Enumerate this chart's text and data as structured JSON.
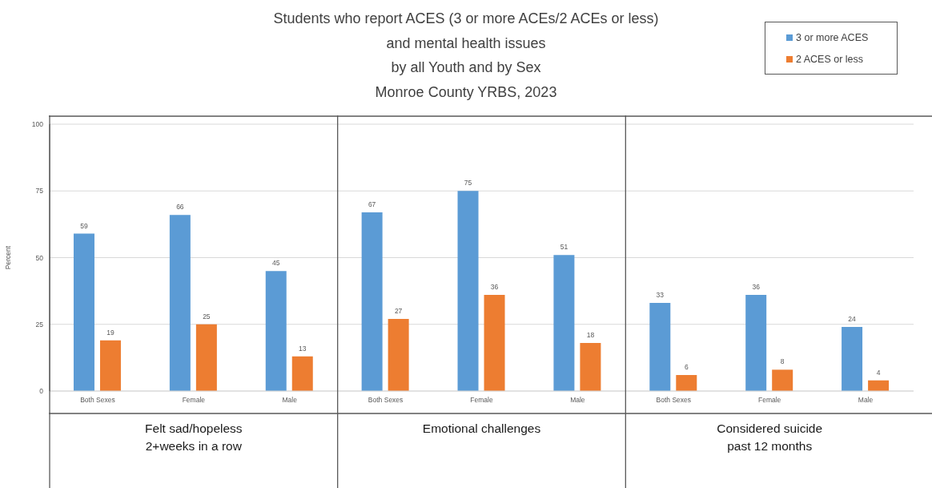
{
  "chart_data": {
    "type": "bar",
    "title": "Students who report ACES (3 or more ACEs/2 ACEs or less)\nand mental health issues\nby all Youth and by Sex\nMonroe County YRBS, 2023",
    "ylabel": "Percent",
    "categories": [
      "Both Sexes",
      "Female",
      "Male",
      "Both Sexes",
      "Female",
      "Male",
      "Both Sexes",
      "Female",
      "Male"
    ],
    "annotations": [
      "Felt sad/hopeless\n2+weeks in a row",
      "Emotional challenges",
      "Considered suicide\npast 12 months"
    ],
    "series": [
      {
        "name": "3 or more ACES",
        "color": "#5b9bd5",
        "values": [
          59,
          66,
          45,
          67,
          75,
          51,
          33,
          36,
          24
        ]
      },
      {
        "name": "2 ACES or less",
        "color": "#ed7d31",
        "values": [
          19,
          25,
          13,
          27,
          36,
          18,
          6,
          8,
          4
        ]
      }
    ],
    "ylim": [
      0,
      100
    ],
    "yticks": [
      0,
      25,
      50,
      75,
      100
    ],
    "grid": "y",
    "legend": "top right",
    "data_labels": true
  }
}
